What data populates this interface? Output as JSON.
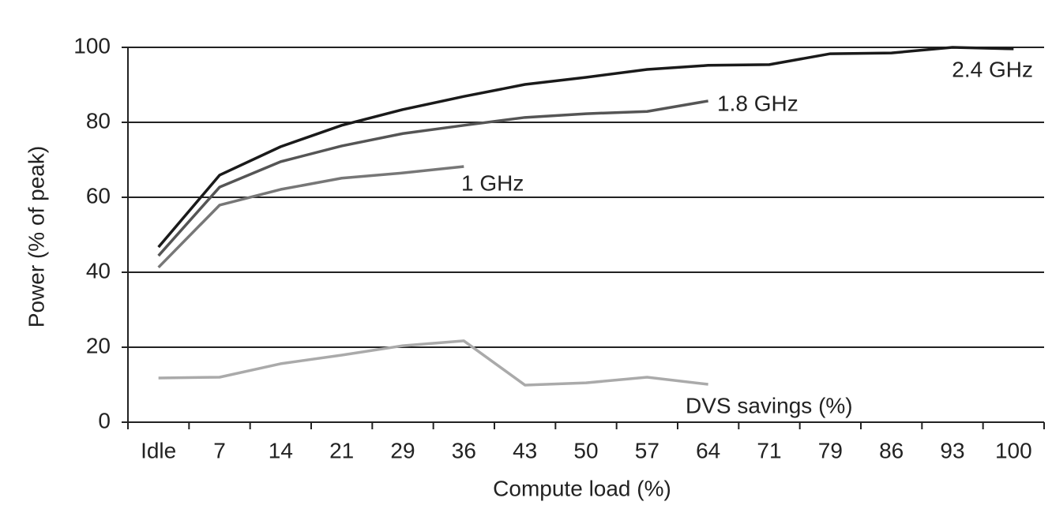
{
  "chart_data": {
    "type": "line",
    "x_label": "Compute load (%)",
    "y_label": "Power (% of peak)",
    "categories": [
      "Idle",
      "7",
      "14",
      "21",
      "29",
      "36",
      "43",
      "50",
      "57",
      "64",
      "71",
      "79",
      "86",
      "93",
      "100"
    ],
    "series": [
      {
        "name": "2.4 GHz",
        "color": "#1a1a1a",
        "values": [
          46.7,
          65.9,
          73.5,
          79.2,
          83.4,
          86.9,
          90.1,
          92,
          94.1,
          95.2,
          95.4,
          98.3,
          98.5,
          100,
          99.6
        ]
      },
      {
        "name": "1.8 GHz",
        "color": "#555555",
        "values": [
          44.4,
          62.7,
          69.5,
          73.7,
          77,
          79.2,
          81.3,
          82.3,
          82.9,
          85.7,
          null,
          null,
          null,
          null,
          null
        ]
      },
      {
        "name": "1 GHz",
        "color": "#777777",
        "values": [
          41.3,
          57.9,
          62.1,
          65.1,
          66.5,
          68.2,
          null,
          null,
          null,
          null,
          null,
          null,
          null,
          null,
          null
        ]
      },
      {
        "name": "DVS savings (%)",
        "color": "#aaaaaa",
        "values": [
          11.8,
          12,
          15.6,
          17.9,
          20.4,
          21.7,
          9.9,
          10.5,
          12,
          10.1,
          null,
          null,
          null,
          null,
          null
        ]
      }
    ],
    "ylim": [
      0,
      100
    ],
    "yticks": [
      0,
      20,
      40,
      60,
      80,
      100
    ],
    "grid": true
  }
}
